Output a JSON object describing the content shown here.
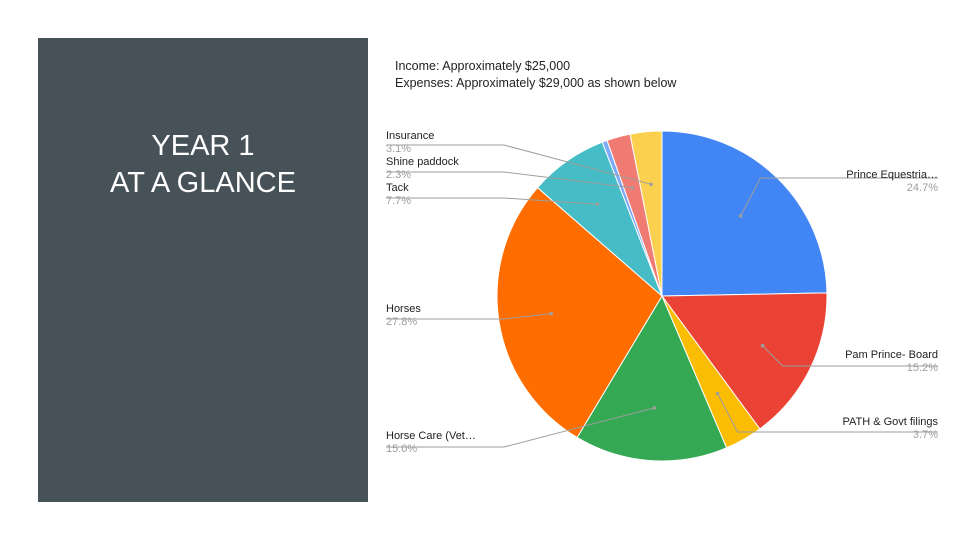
{
  "slide": {
    "title_line1": "YEAR 1",
    "title_line2": "AT A GLANCE",
    "income_text": "Income: Approximately $25,000",
    "expenses_text": "Expenses: Approximately $29,000 as shown below",
    "panel_color": "#465158"
  },
  "chart_data": {
    "type": "pie",
    "title": "",
    "start_angle_deg": 0,
    "direction": "clockwise",
    "slices": [
      {
        "label": "Prince Equestria…",
        "pct_label": "24.7%",
        "value": 24.7,
        "color": "#4285f4"
      },
      {
        "label": "Pam Prince- Board",
        "pct_label": "15.2%",
        "value": 15.2,
        "color": "#ea4335"
      },
      {
        "label": "PATH & Govt filings",
        "pct_label": "3.7%",
        "value": 3.7,
        "color": "#fbbc04"
      },
      {
        "label": "Horse Care (Vet…",
        "pct_label": "15.0%",
        "value": 15.0,
        "color": "#34a853"
      },
      {
        "label": "Horses",
        "pct_label": "27.8%",
        "value": 27.8,
        "color": "#ff6d01"
      },
      {
        "label": "Tack",
        "pct_label": "7.7%",
        "value": 7.7,
        "color": "#46bdc6"
      },
      {
        "label": "",
        "pct_label": "",
        "value": 0.5,
        "color": "#7baaf7"
      },
      {
        "label": "Shine paddock",
        "pct_label": "2.3%",
        "value": 2.3,
        "color": "#f07b72"
      },
      {
        "label": "Insurance",
        "pct_label": "3.1%",
        "value": 3.1,
        "color": "#fcd04f"
      }
    ]
  }
}
